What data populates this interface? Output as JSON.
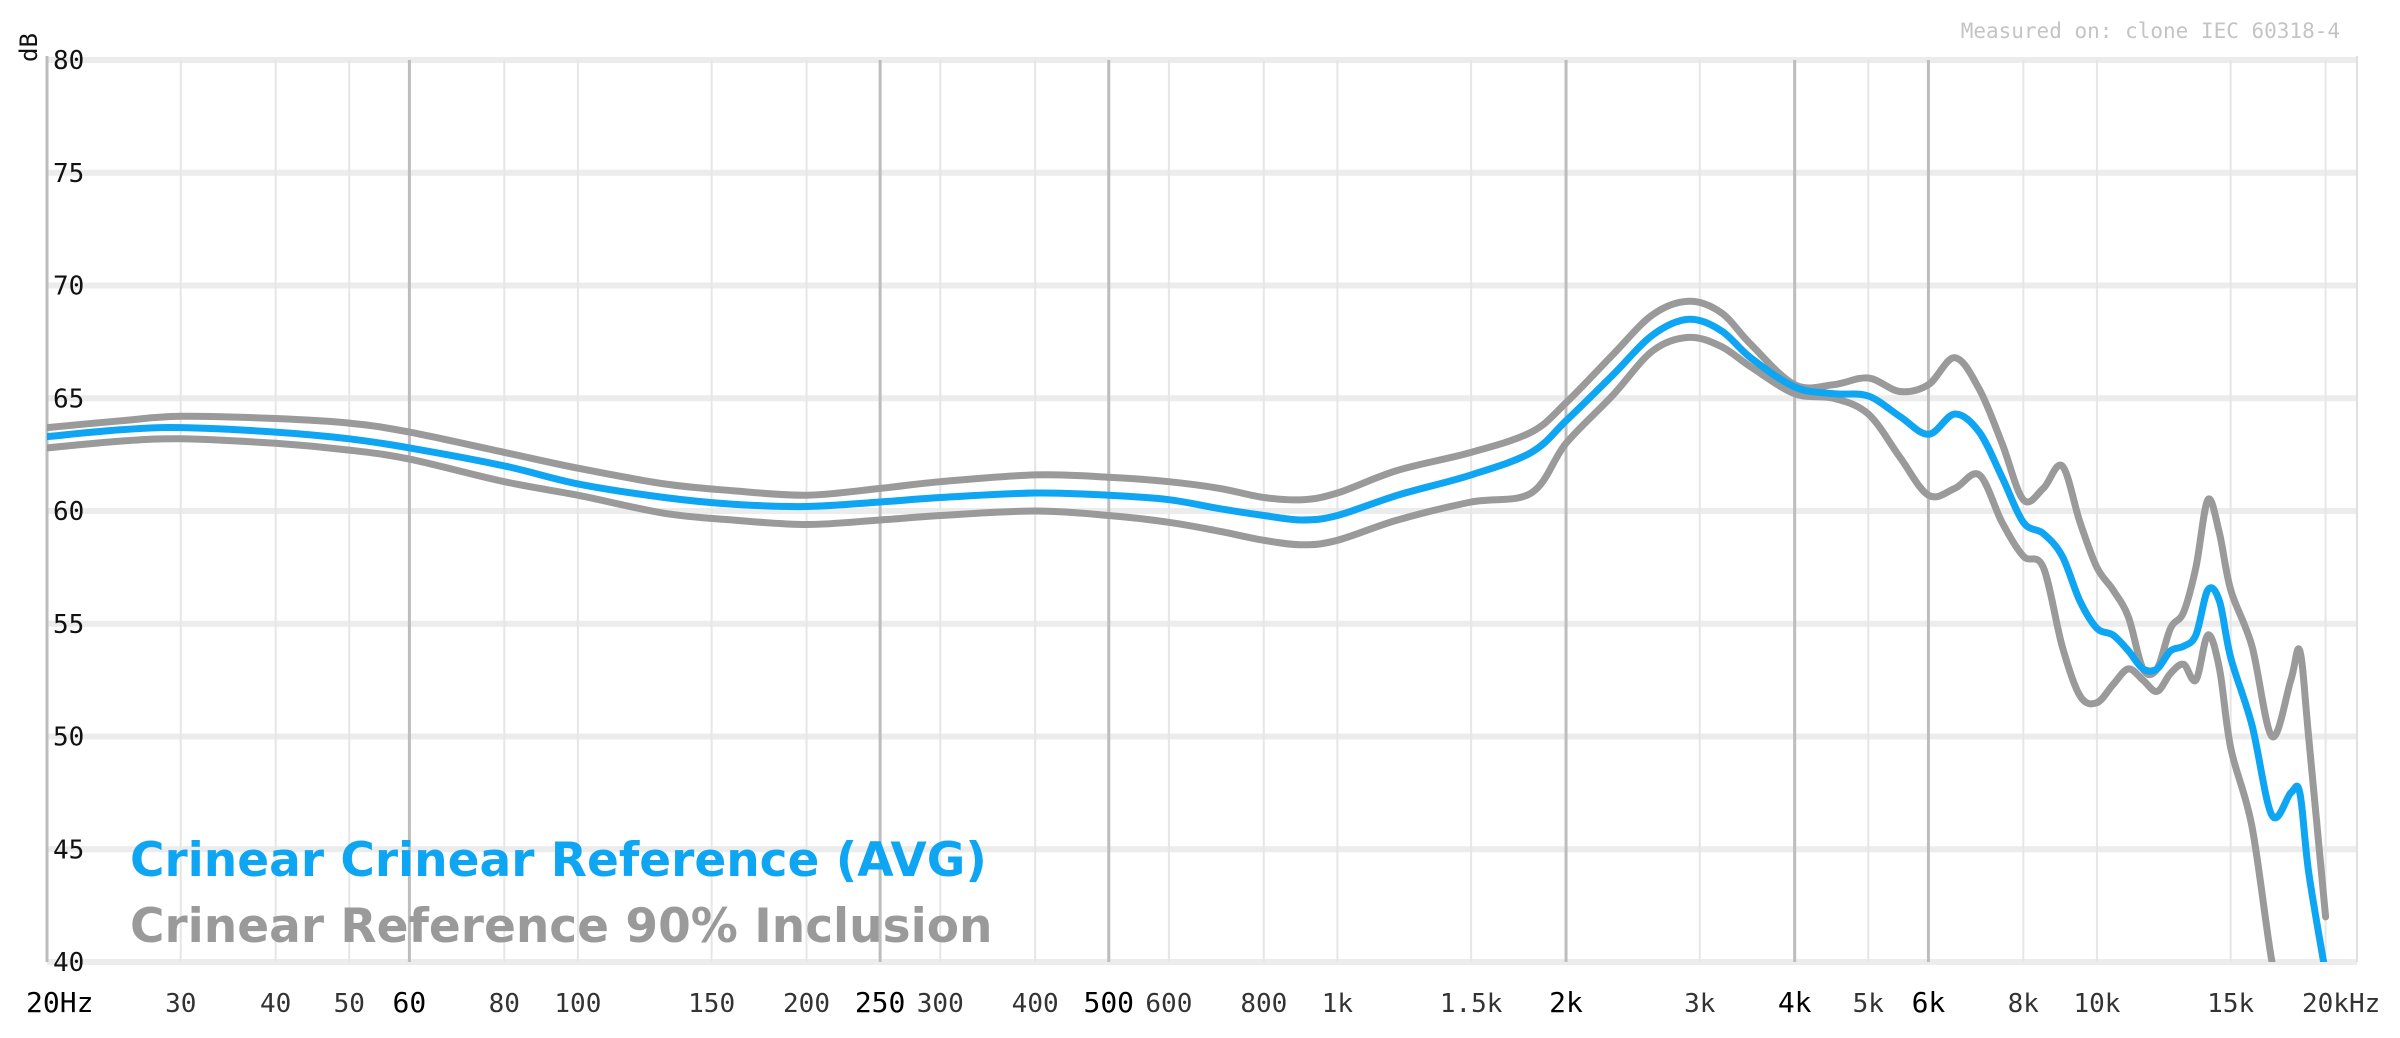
{
  "chart_data": {
    "type": "line",
    "x_scale": "log",
    "xlim": [
      20,
      22000
    ],
    "ylim": [
      40,
      80
    ],
    "grid": true,
    "ylabel": "dB",
    "annotation": "Measured on: clone IEC 60318-4",
    "y_ticks": [
      "80",
      "75",
      "70",
      "65",
      "60",
      "55",
      "50",
      "45",
      "40"
    ],
    "y_tick_values": [
      80,
      75,
      70,
      65,
      60,
      55,
      50,
      45,
      40
    ],
    "x_ticks": [
      {
        "label": "20Hz",
        "value": 20,
        "major": true
      },
      {
        "label": "30",
        "value": 30,
        "major": false
      },
      {
        "label": "40",
        "value": 40,
        "major": false
      },
      {
        "label": "50",
        "value": 50,
        "major": false
      },
      {
        "label": "60",
        "value": 60,
        "major": true
      },
      {
        "label": "80",
        "value": 80,
        "major": false
      },
      {
        "label": "100",
        "value": 100,
        "major": false
      },
      {
        "label": "150",
        "value": 150,
        "major": false
      },
      {
        "label": "200",
        "value": 200,
        "major": false
      },
      {
        "label": "250",
        "value": 250,
        "major": true
      },
      {
        "label": "300",
        "value": 300,
        "major": false
      },
      {
        "label": "400",
        "value": 400,
        "major": false
      },
      {
        "label": "500",
        "value": 500,
        "major": true
      },
      {
        "label": "600",
        "value": 600,
        "major": false
      },
      {
        "label": "800",
        "value": 800,
        "major": false
      },
      {
        "label": "1k",
        "value": 1000,
        "major": false
      },
      {
        "label": "1.5k",
        "value": 1500,
        "major": false
      },
      {
        "label": "2k",
        "value": 2000,
        "major": true
      },
      {
        "label": "3k",
        "value": 3000,
        "major": false
      },
      {
        "label": "4k",
        "value": 4000,
        "major": true
      },
      {
        "label": "5k",
        "value": 5000,
        "major": false
      },
      {
        "label": "6k",
        "value": 6000,
        "major": true
      },
      {
        "label": "8k",
        "value": 8000,
        "major": false
      },
      {
        "label": "10k",
        "value": 10000,
        "major": false
      },
      {
        "label": "15k",
        "value": 15000,
        "major": false
      },
      {
        "label": "20kHz",
        "value": 20000,
        "major": false
      }
    ],
    "legend_position": "bottom-left",
    "series": [
      {
        "name": "Crinear Crinear Reference (AVG)",
        "color": "#0ea5f2",
        "points": [
          [
            20,
            63.3
          ],
          [
            25,
            63.6
          ],
          [
            30,
            63.7
          ],
          [
            40,
            63.5
          ],
          [
            50,
            63.2
          ],
          [
            60,
            62.8
          ],
          [
            80,
            62.0
          ],
          [
            100,
            61.2
          ],
          [
            130,
            60.6
          ],
          [
            160,
            60.3
          ],
          [
            200,
            60.2
          ],
          [
            250,
            60.4
          ],
          [
            300,
            60.6
          ],
          [
            400,
            60.8
          ],
          [
            500,
            60.7
          ],
          [
            600,
            60.5
          ],
          [
            700,
            60.1
          ],
          [
            800,
            59.8
          ],
          [
            900,
            59.6
          ],
          [
            1000,
            59.8
          ],
          [
            1200,
            60.7
          ],
          [
            1500,
            61.6
          ],
          [
            1800,
            62.6
          ],
          [
            2000,
            64.0
          ],
          [
            2300,
            66.0
          ],
          [
            2600,
            67.8
          ],
          [
            2900,
            68.5
          ],
          [
            3200,
            68.0
          ],
          [
            3500,
            66.8
          ],
          [
            4000,
            65.5
          ],
          [
            4500,
            65.2
          ],
          [
            5000,
            65.1
          ],
          [
            5500,
            64.2
          ],
          [
            6000,
            63.4
          ],
          [
            6500,
            64.3
          ],
          [
            7000,
            63.5
          ],
          [
            7500,
            61.5
          ],
          [
            8000,
            59.5
          ],
          [
            8500,
            59.0
          ],
          [
            9000,
            58.0
          ],
          [
            9500,
            56.0
          ],
          [
            10000,
            54.8
          ],
          [
            10500,
            54.5
          ],
          [
            11000,
            53.8
          ],
          [
            11500,
            53.0
          ],
          [
            12000,
            53.0
          ],
          [
            12500,
            53.8
          ],
          [
            13000,
            54.0
          ],
          [
            13500,
            54.5
          ],
          [
            14000,
            56.5
          ],
          [
            14500,
            56.0
          ],
          [
            15000,
            53.5
          ],
          [
            16000,
            50.5
          ],
          [
            17000,
            46.5
          ],
          [
            18000,
            47.5
          ],
          [
            18500,
            47.5
          ],
          [
            19000,
            44.0
          ],
          [
            20000,
            39.5
          ]
        ]
      },
      {
        "name": "Crinear Reference 90% Inclusion",
        "color": "#9a9a9a",
        "upper": [
          [
            20,
            63.7
          ],
          [
            25,
            64.0
          ],
          [
            30,
            64.2
          ],
          [
            40,
            64.1
          ],
          [
            50,
            63.9
          ],
          [
            60,
            63.5
          ],
          [
            80,
            62.6
          ],
          [
            100,
            61.9
          ],
          [
            130,
            61.2
          ],
          [
            160,
            60.9
          ],
          [
            200,
            60.7
          ],
          [
            250,
            61.0
          ],
          [
            300,
            61.3
          ],
          [
            400,
            61.6
          ],
          [
            500,
            61.5
          ],
          [
            600,
            61.3
          ],
          [
            700,
            61.0
          ],
          [
            800,
            60.6
          ],
          [
            900,
            60.5
          ],
          [
            1000,
            60.8
          ],
          [
            1200,
            61.8
          ],
          [
            1500,
            62.6
          ],
          [
            1800,
            63.5
          ],
          [
            2000,
            64.8
          ],
          [
            2300,
            66.9
          ],
          [
            2600,
            68.7
          ],
          [
            2900,
            69.3
          ],
          [
            3200,
            68.8
          ],
          [
            3500,
            67.4
          ],
          [
            4000,
            65.6
          ],
          [
            4500,
            65.6
          ],
          [
            5000,
            65.9
          ],
          [
            5500,
            65.3
          ],
          [
            6000,
            65.6
          ],
          [
            6500,
            66.8
          ],
          [
            7000,
            65.4
          ],
          [
            7500,
            63.0
          ],
          [
            8000,
            60.5
          ],
          [
            8500,
            61.0
          ],
          [
            9000,
            62.0
          ],
          [
            9500,
            59.5
          ],
          [
            10000,
            57.5
          ],
          [
            10500,
            56.5
          ],
          [
            11000,
            55.3
          ],
          [
            11500,
            53.0
          ],
          [
            12000,
            53.0
          ],
          [
            12500,
            54.8
          ],
          [
            13000,
            55.5
          ],
          [
            13500,
            57.5
          ],
          [
            14000,
            60.5
          ],
          [
            14500,
            59.0
          ],
          [
            15000,
            56.5
          ],
          [
            16000,
            54.0
          ],
          [
            17000,
            50.0
          ],
          [
            18000,
            52.5
          ],
          [
            18500,
            53.8
          ],
          [
            19000,
            50.0
          ],
          [
            20000,
            42.0
          ]
        ],
        "lower": [
          [
            20,
            62.8
          ],
          [
            25,
            63.1
          ],
          [
            30,
            63.2
          ],
          [
            40,
            63.0
          ],
          [
            50,
            62.7
          ],
          [
            60,
            62.3
          ],
          [
            80,
            61.3
          ],
          [
            100,
            60.7
          ],
          [
            130,
            59.9
          ],
          [
            160,
            59.6
          ],
          [
            200,
            59.4
          ],
          [
            250,
            59.6
          ],
          [
            300,
            59.8
          ],
          [
            400,
            60.0
          ],
          [
            500,
            59.8
          ],
          [
            600,
            59.5
          ],
          [
            700,
            59.1
          ],
          [
            800,
            58.7
          ],
          [
            900,
            58.5
          ],
          [
            1000,
            58.7
          ],
          [
            1200,
            59.6
          ],
          [
            1500,
            60.4
          ],
          [
            1800,
            60.8
          ],
          [
            2000,
            63.0
          ],
          [
            2300,
            65.1
          ],
          [
            2600,
            67.1
          ],
          [
            2900,
            67.7
          ],
          [
            3200,
            67.3
          ],
          [
            3500,
            66.4
          ],
          [
            4000,
            65.2
          ],
          [
            4500,
            65.0
          ],
          [
            5000,
            64.3
          ],
          [
            5500,
            62.4
          ],
          [
            6000,
            60.7
          ],
          [
            6500,
            61.0
          ],
          [
            7000,
            61.6
          ],
          [
            7500,
            59.5
          ],
          [
            8000,
            58.0
          ],
          [
            8500,
            57.5
          ],
          [
            9000,
            54.0
          ],
          [
            9500,
            51.8
          ],
          [
            10000,
            51.5
          ],
          [
            10500,
            52.3
          ],
          [
            11000,
            53.0
          ],
          [
            11500,
            52.5
          ],
          [
            12000,
            52.0
          ],
          [
            12500,
            52.8
          ],
          [
            13000,
            53.2
          ],
          [
            13500,
            52.5
          ],
          [
            14000,
            54.5
          ],
          [
            14500,
            53.0
          ],
          [
            15000,
            49.5
          ],
          [
            16000,
            46.0
          ],
          [
            17000,
            40.0
          ],
          [
            17500,
            39.0
          ],
          [
            18000,
            39.0
          ]
        ]
      }
    ]
  }
}
